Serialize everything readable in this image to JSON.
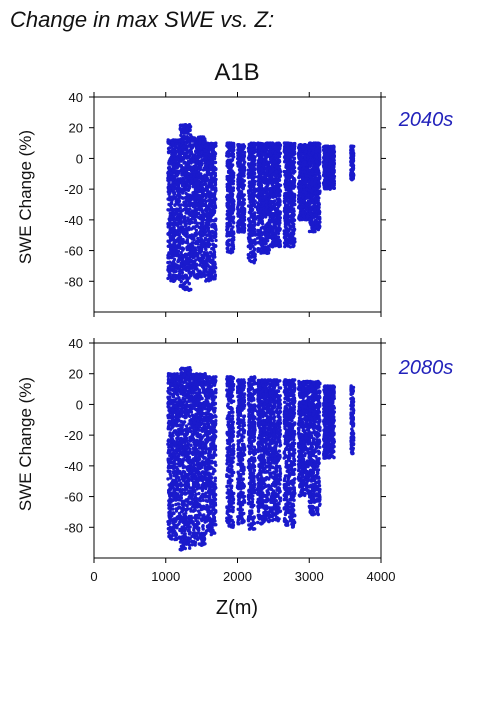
{
  "header": {
    "title": "Change in max SWE vs. Z:",
    "scenario": "A1B"
  },
  "colors": {
    "points": "#1a1acc",
    "period_label": "#2222bb"
  },
  "chart_data": [
    {
      "type": "scatter",
      "period": "2040s",
      "xlabel": "Z(m)",
      "ylabel": "SWE Change (%)",
      "xlim": [
        0,
        4000
      ],
      "ylim": [
        -100,
        40
      ],
      "xticks": [
        0,
        1000,
        2000,
        3000,
        4000
      ],
      "yticks": [
        40,
        20,
        0,
        -20,
        -40,
        -60,
        -80
      ],
      "grid": false,
      "elevation_bands": [
        {
          "z": [
            1030,
            1200
          ],
          "y": [
            -80,
            12
          ]
        },
        {
          "z": [
            1200,
            1350
          ],
          "y": [
            -86,
            22
          ]
        },
        {
          "z": [
            1350,
            1550
          ],
          "y": [
            -78,
            14
          ]
        },
        {
          "z": [
            1550,
            1700
          ],
          "y": [
            -80,
            10
          ]
        },
        {
          "z": [
            1850,
            1950
          ],
          "y": [
            -62,
            10
          ]
        },
        {
          "z": [
            2000,
            2100
          ],
          "y": [
            -48,
            9
          ]
        },
        {
          "z": [
            2150,
            2250
          ],
          "y": [
            -68,
            10
          ]
        },
        {
          "z": [
            2280,
            2450
          ],
          "y": [
            -62,
            10
          ]
        },
        {
          "z": [
            2450,
            2600
          ],
          "y": [
            -58,
            10
          ]
        },
        {
          "z": [
            2650,
            2800
          ],
          "y": [
            -58,
            10
          ]
        },
        {
          "z": [
            2850,
            3000
          ],
          "y": [
            -40,
            9
          ]
        },
        {
          "z": [
            3000,
            3150
          ],
          "y": [
            -48,
            10
          ]
        },
        {
          "z": [
            3200,
            3350
          ],
          "y": [
            -20,
            8
          ]
        },
        {
          "z": [
            3580,
            3620
          ],
          "y": [
            -14,
            8
          ]
        }
      ]
    },
    {
      "type": "scatter",
      "period": "2080s",
      "xlabel": "Z(m)",
      "ylabel": "SWE Change (%)",
      "xlim": [
        0,
        4000
      ],
      "ylim": [
        -100,
        40
      ],
      "xticks": [
        0,
        1000,
        2000,
        3000,
        4000
      ],
      "yticks": [
        40,
        20,
        0,
        -20,
        -40,
        -60,
        -80
      ],
      "grid": false,
      "elevation_bands": [
        {
          "z": [
            1030,
            1200
          ],
          "y": [
            -88,
            20
          ]
        },
        {
          "z": [
            1200,
            1350
          ],
          "y": [
            -95,
            24
          ]
        },
        {
          "z": [
            1350,
            1550
          ],
          "y": [
            -92,
            20
          ]
        },
        {
          "z": [
            1550,
            1700
          ],
          "y": [
            -85,
            18
          ]
        },
        {
          "z": [
            1850,
            1950
          ],
          "y": [
            -80,
            18
          ]
        },
        {
          "z": [
            2000,
            2100
          ],
          "y": [
            -78,
            16
          ]
        },
        {
          "z": [
            2150,
            2250
          ],
          "y": [
            -82,
            18
          ]
        },
        {
          "z": [
            2280,
            2450
          ],
          "y": [
            -78,
            16
          ]
        },
        {
          "z": [
            2450,
            2600
          ],
          "y": [
            -76,
            16
          ]
        },
        {
          "z": [
            2650,
            2800
          ],
          "y": [
            -80,
            16
          ]
        },
        {
          "z": [
            2850,
            3000
          ],
          "y": [
            -60,
            15
          ]
        },
        {
          "z": [
            3000,
            3150
          ],
          "y": [
            -72,
            15
          ]
        },
        {
          "z": [
            3200,
            3350
          ],
          "y": [
            -35,
            12
          ]
        },
        {
          "z": [
            3580,
            3620
          ],
          "y": [
            -32,
            12
          ]
        }
      ]
    }
  ]
}
